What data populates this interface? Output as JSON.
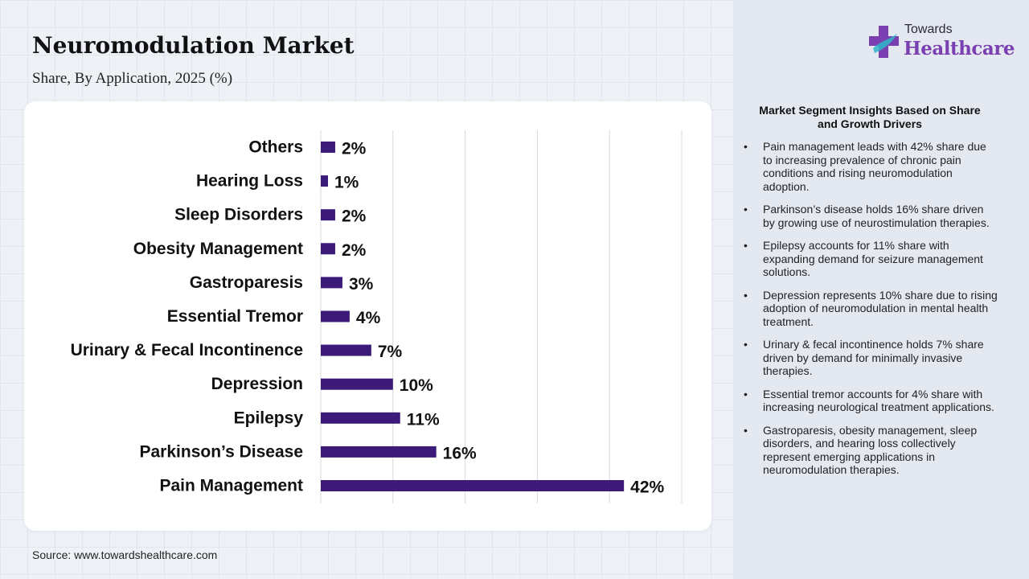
{
  "header": {
    "title": "Neuromodulation Market",
    "subtitle": "Share, By Application, 2025 (%)"
  },
  "source": "Source: www.towardshealthcare.com",
  "logo": {
    "top_text": "Towards",
    "main_text": "Healthcare"
  },
  "insights": {
    "heading": "Market Segment Insights Based on Share and Growth Drivers",
    "items": [
      "Pain management leads with 42% share due to increasing prevalence of chronic pain conditions and rising neuromodulation adoption.",
      "Parkinson’s disease holds 16% share driven by growing use of neurostimulation therapies.",
      "Epilepsy accounts for 11% share with expanding demand for seizure management solutions.",
      "Depression represents 10% share due to rising adoption of neuromodulation in mental health treatment.",
      "Urinary & fecal incontinence holds 7% share driven by demand for minimally invasive therapies.",
      "Essential tremor accounts for 4% share with increasing neurological treatment applications.",
      "Gastroparesis, obesity management, sleep disorders, and hearing loss collectively represent emerging applications in neuromodulation therapies."
    ]
  },
  "colors": {
    "bar": "#3b1a7a",
    "gridline": "#d9d9d9",
    "logo_purple": "#7a3fb0",
    "logo_teal": "#2fb7c9"
  },
  "chart_data": {
    "type": "bar",
    "orientation": "horizontal",
    "categories": [
      "Others",
      "Hearing Loss",
      "Sleep Disorders",
      "Obesity Management",
      "Gastroparesis",
      "Essential Tremor",
      "Urinary & Fecal Incontinence",
      "Depression",
      "Epilepsy",
      "Parkinson’s Disease",
      "Pain Management"
    ],
    "values": [
      2,
      1,
      2,
      2,
      3,
      4,
      7,
      10,
      11,
      16,
      42
    ],
    "value_labels": [
      "2%",
      "1%",
      "2%",
      "2%",
      "3%",
      "4%",
      "7%",
      "10%",
      "11%",
      "16%",
      "42%"
    ],
    "unit": "%",
    "xlim": [
      0,
      50
    ],
    "x_gridlines": [
      0,
      10,
      20,
      30,
      40,
      50
    ],
    "grid": true,
    "legend": "none"
  }
}
